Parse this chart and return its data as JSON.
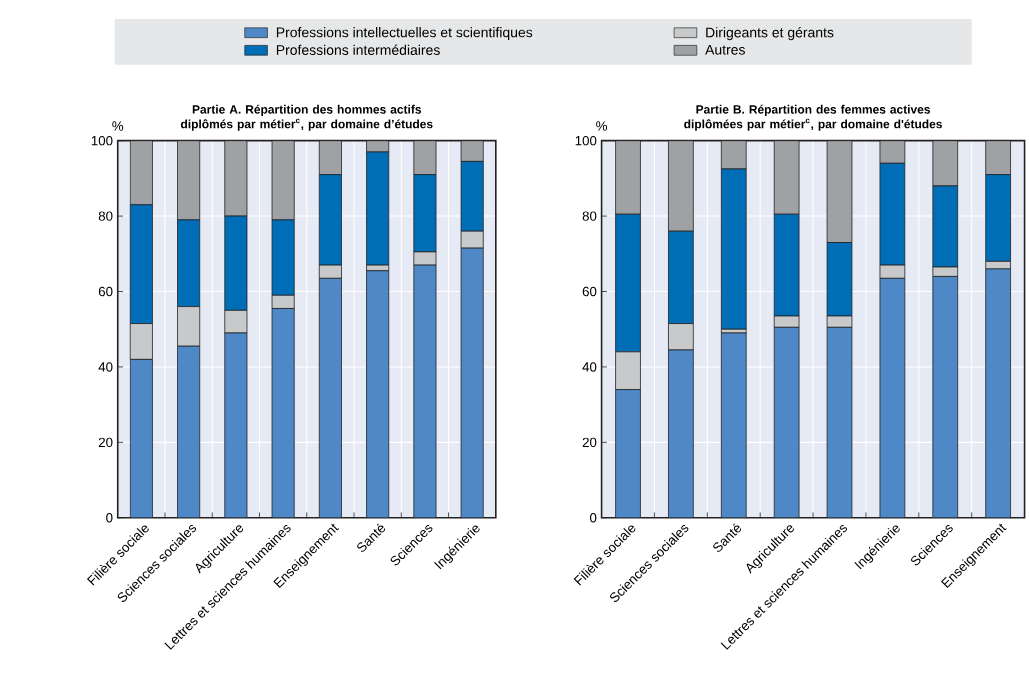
{
  "chart_data": [
    {
      "type": "bar",
      "stacked": true,
      "title": "Partie A. Répartition des hommes actifs diplômés par métier$^{c}$, par domaine d’études",
      "ylabel": "%",
      "categories": [
        "Filière sociale",
        "Sciences sociales",
        "Agriculture",
        "Lettres et sciences humaines",
        "Enseignement",
        "Santé",
        "Sciences",
        "Ingénierie"
      ],
      "series": [
        {
          "name": "Professions intellectuelles et scientifiques",
          "color": "#4f88c6",
          "values": [
            42,
            45.5,
            49,
            55.5,
            63.5,
            65.5,
            67,
            71.5
          ]
        },
        {
          "name": "Dirigeants et gérants",
          "color": "#c8c9cb",
          "values": [
            9.5,
            10.5,
            6,
            3.5,
            3.5,
            1.5,
            3.5,
            4.5
          ]
        },
        {
          "name": "Professions intermédiaires",
          "color": "#006db7",
          "values": [
            31.5,
            23,
            25,
            20,
            24,
            30,
            20.5,
            18.5
          ]
        },
        {
          "name": "Autres",
          "color": "#a0a1a4",
          "values": [
            17,
            21,
            20,
            21,
            9,
            3,
            9,
            5.5
          ]
        }
      ],
      "ylim": [
        0,
        100
      ],
      "yticks": [
        0,
        20,
        40,
        60,
        80,
        100
      ],
      "grid": "y",
      "legend": "top"
    },
    {
      "type": "bar",
      "stacked": true,
      "title": "Partie B. Répartition des femmes actives diplômées par métier$^{c}$, par domaine d'études",
      "ylabel": "%",
      "categories": [
        "Filière sociale",
        "Sciences sociales",
        "Santé",
        "Agriculture",
        "Lettres et sciences humaines",
        "Ingénierie",
        "Sciences",
        "Enseignement"
      ],
      "series": [
        {
          "color": "#4f88c6",
          "values": [
            34,
            44.5,
            49,
            50.5,
            50.5,
            63.5,
            64,
            66
          ]
        },
        {
          "color": "#c8c9cb",
          "values": [
            10,
            7,
            1,
            3,
            3,
            3.5,
            2.5,
            2
          ]
        },
        {
          "color": "#006db7",
          "values": [
            36.5,
            24.5,
            42.5,
            27,
            19.5,
            27,
            21.5,
            23
          ]
        },
        {
          "color": "#a0a1a4",
          "values": [
            19.5,
            24,
            7.5,
            19.5,
            27,
            6,
            12,
            9
          ]
        }
      ],
      "ylim": [
        0,
        100
      ],
      "yticks": [
        0,
        20,
        40,
        60,
        80,
        100
      ],
      "grid": "y"
    }
  ]
}
